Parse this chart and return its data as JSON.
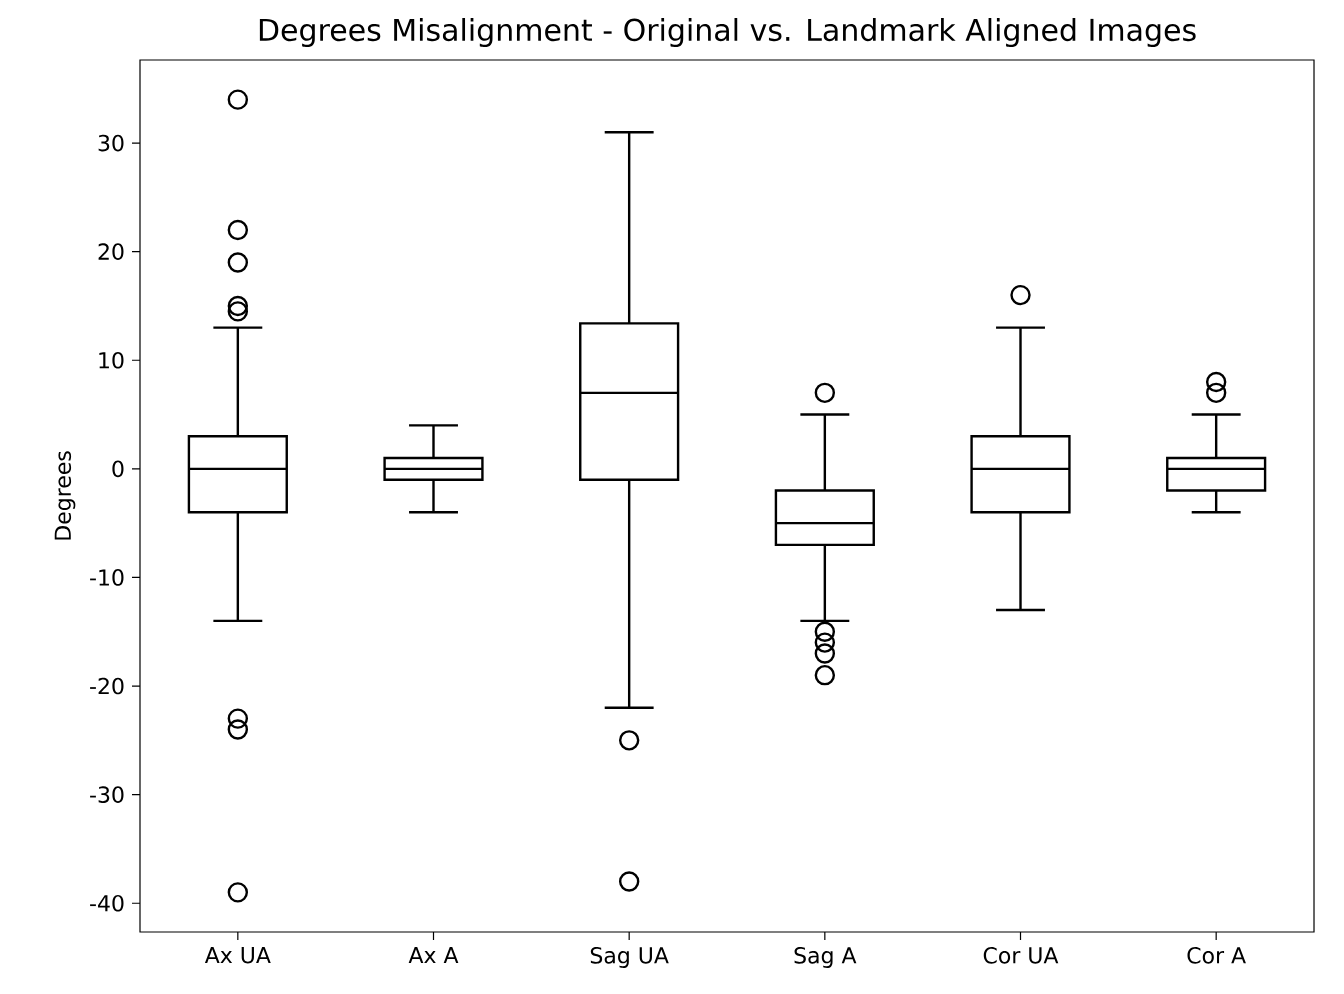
{
  "chart_data": {
    "type": "box",
    "title": "Degrees Misalignment - Original vs. Landmark Aligned Images",
    "ylabel": "Degrees",
    "categories": [
      "Ax UA",
      "Ax A",
      "Sag UA",
      "Sag A",
      "Cor UA",
      "Cor A"
    ],
    "boxes": [
      {
        "low": -14,
        "q1": -4,
        "median": 0,
        "q3": 3,
        "high": 13,
        "outliers": [
          34,
          22,
          19,
          15,
          14.5,
          -23,
          -24,
          -39
        ]
      },
      {
        "low": -4,
        "q1": -1,
        "median": 0,
        "q3": 1,
        "high": 4
      },
      {
        "low": -22,
        "q1": -1,
        "median": 7,
        "q3": 13.4,
        "high": 31,
        "outliers": [
          -25,
          -38
        ]
      },
      {
        "low": -14,
        "q1": -7,
        "median": -5,
        "q3": -2,
        "high": 5,
        "outliers": [
          7,
          -15,
          -16,
          -17,
          -19
        ]
      },
      {
        "low": -13,
        "q1": -4,
        "median": 0,
        "q3": 3,
        "high": 13,
        "outliers": [
          16
        ]
      },
      {
        "low": -4,
        "q1": -2,
        "median": 0,
        "q3": 1,
        "high": 5,
        "outliers": [
          7,
          8
        ]
      }
    ],
    "color": "#000000",
    "marker": "circle",
    "grid": false,
    "ylim": [
      -42.65,
      37.65
    ],
    "yticks": [
      -40,
      -30,
      -20,
      -10,
      0,
      10,
      20,
      30
    ]
  }
}
